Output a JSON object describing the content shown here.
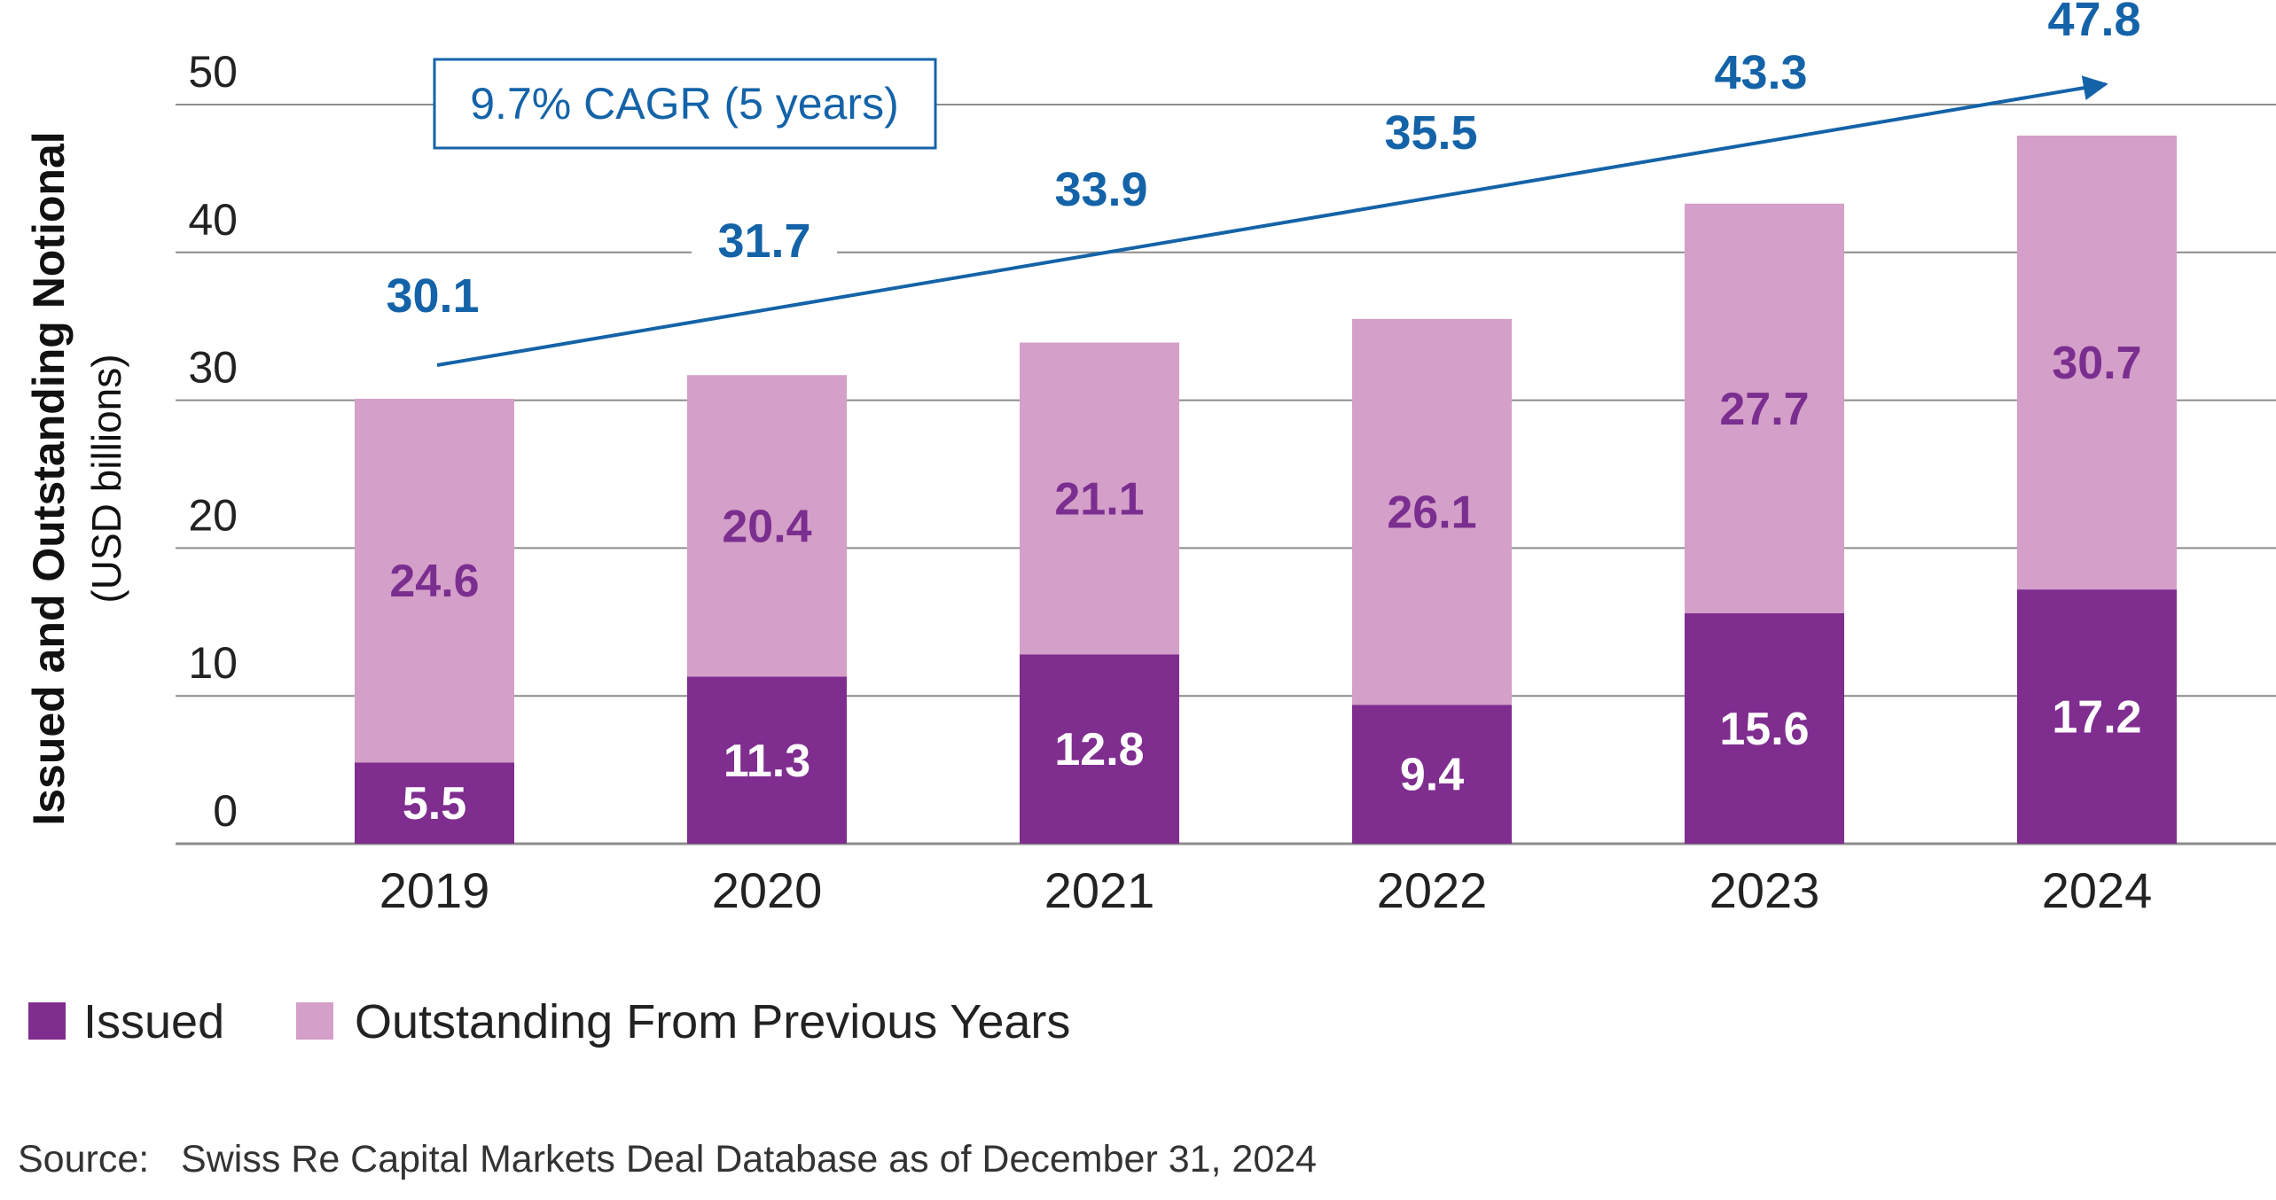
{
  "chart_data": {
    "type": "bar",
    "stacked": true,
    "categories": [
      "2019",
      "2020",
      "2021",
      "2022",
      "2023",
      "2024"
    ],
    "series": [
      {
        "name": "Issued",
        "values": [
          5.5,
          11.3,
          12.8,
          9.4,
          15.6,
          17.2
        ],
        "color": "#7f2d8f"
      },
      {
        "name": "Outstanding From Previous Years",
        "values": [
          24.6,
          20.4,
          21.1,
          26.1,
          27.7,
          30.7
        ],
        "color": "#d49fc8"
      }
    ],
    "totals": [
      30.1,
      31.7,
      33.9,
      35.5,
      43.3,
      47.8
    ],
    "segment_labels": {
      "issued": [
        "5.5",
        "11.3",
        "12.8",
        "9.4",
        "15.6",
        "17.2"
      ],
      "outstanding": [
        "24.6",
        "20.4",
        "21.1",
        "26.1",
        "27.7",
        "30.7"
      ]
    },
    "total_labels": [
      "30.1",
      "31.7",
      "33.9",
      "35.5",
      "43.3",
      "47.8"
    ],
    "ylabel": "Issued and Outstanding Notional",
    "ylabel_units": "(USD billions)",
    "ylim": [
      0,
      50
    ],
    "yticks": [
      "0",
      "10",
      "20",
      "30",
      "40",
      "50"
    ],
    "grid": true,
    "legend_position": "bottom-left",
    "annotation": "9.7% CAGR (5 years)",
    "colors": {
      "issued": "#7f2d8f",
      "outstanding": "#d49fc8",
      "annotation": "#1463a8",
      "gridline": "#8c8c8c"
    }
  },
  "legend": {
    "items": [
      {
        "label": "Issued",
        "color": "#7f2d8f"
      },
      {
        "label": "Outstanding From Previous Years",
        "color": "#d49fc8"
      }
    ]
  },
  "source": "Source:   Swiss Re Capital Markets Deal Database as of December 31, 2024"
}
